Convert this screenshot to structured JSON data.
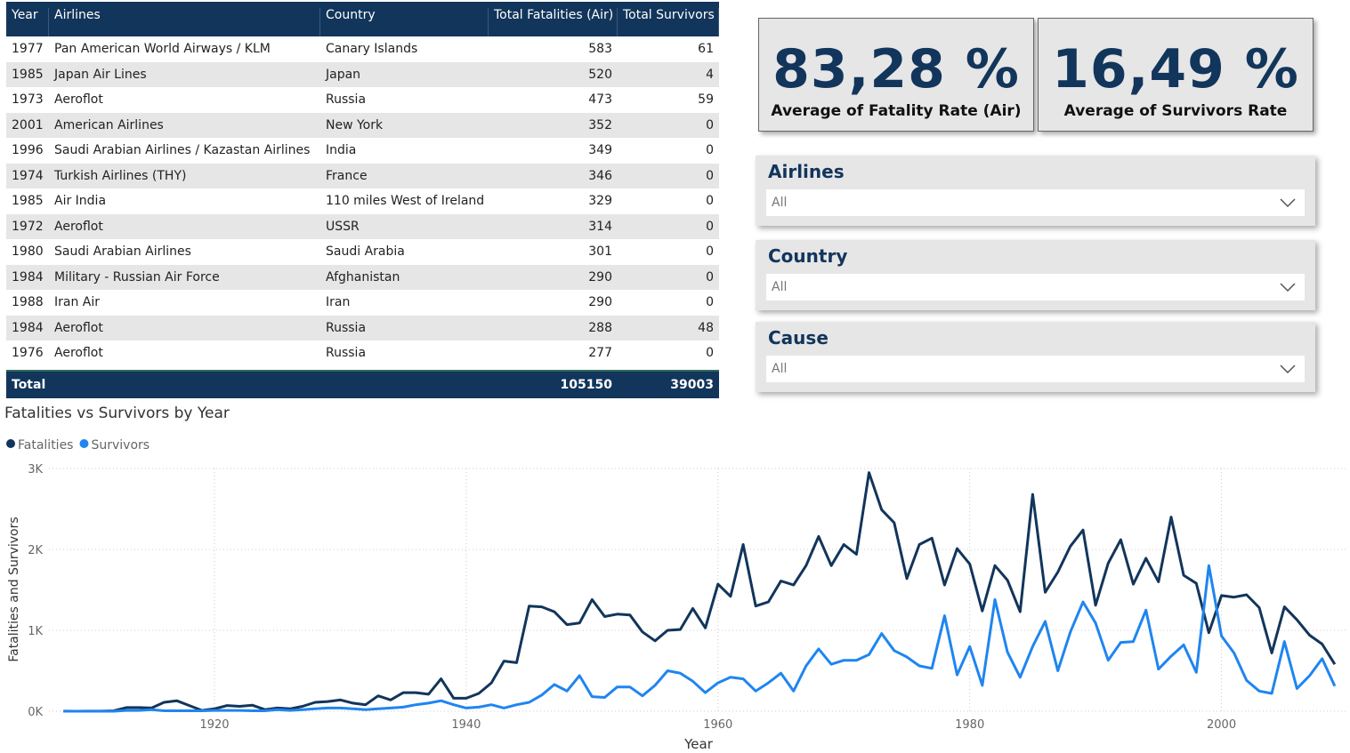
{
  "table": {
    "columns": [
      "Year",
      "Airlines",
      "Country",
      "Total Fatalities (Air)",
      "Total Survivors"
    ],
    "rows": [
      [
        "1977",
        "Pan American World Airways / KLM",
        "Canary Islands",
        "583",
        "61"
      ],
      [
        "1985",
        "Japan Air Lines",
        "Japan",
        "520",
        "4"
      ],
      [
        "1973",
        "Aeroflot",
        "Russia",
        "473",
        "59"
      ],
      [
        "2001",
        "American Airlines",
        "New York",
        "352",
        "0"
      ],
      [
        "1996",
        "Saudi Arabian Airlines / Kazastan Airlines",
        "India",
        "349",
        "0"
      ],
      [
        "1974",
        "Turkish Airlines (THY)",
        "France",
        "346",
        "0"
      ],
      [
        "1985",
        "Air India",
        "110 miles West of Ireland",
        "329",
        "0"
      ],
      [
        "1972",
        "Aeroflot",
        "USSR",
        "314",
        "0"
      ],
      [
        "1980",
        "Saudi Arabian Airlines",
        "Saudi Arabia",
        "301",
        "0"
      ],
      [
        "1984",
        "Military - Russian Air Force",
        "Afghanistan",
        "290",
        "0"
      ],
      [
        "1988",
        "Iran Air",
        "Iran",
        "290",
        "0"
      ],
      [
        "1984",
        "Aeroflot",
        "Russia",
        "288",
        "48"
      ],
      [
        "1976",
        "Aeroflot",
        "Russia",
        "277",
        "0"
      ]
    ],
    "total": {
      "label": "Total",
      "fatalities": "105150",
      "survivors": "39003"
    }
  },
  "kpis": [
    {
      "value": "83,28 %",
      "label": "Average of Fatality Rate (Air)"
    },
    {
      "value": "16,49 %",
      "label": "Average of Survivors Rate"
    }
  ],
  "slicers": [
    {
      "title": "Airlines",
      "selection": "All"
    },
    {
      "title": "Country",
      "selection": "All"
    },
    {
      "title": "Cause",
      "selection": "All"
    }
  ],
  "chart_data": {
    "type": "line",
    "title": "Fatalities vs Survivors by Year",
    "x_label": "Year",
    "y_label": "Fatalities and Survivors",
    "x": [
      1908,
      1909,
      1910,
      1911,
      1912,
      1913,
      1914,
      1915,
      1916,
      1917,
      1918,
      1919,
      1920,
      1921,
      1922,
      1923,
      1924,
      1925,
      1926,
      1927,
      1928,
      1929,
      1930,
      1931,
      1932,
      1933,
      1934,
      1935,
      1936,
      1937,
      1938,
      1939,
      1940,
      1941,
      1942,
      1943,
      1944,
      1945,
      1946,
      1947,
      1948,
      1949,
      1950,
      1951,
      1952,
      1953,
      1954,
      1955,
      1956,
      1957,
      1958,
      1959,
      1960,
      1961,
      1962,
      1963,
      1964,
      1965,
      1966,
      1967,
      1968,
      1969,
      1970,
      1971,
      1972,
      1973,
      1974,
      1975,
      1976,
      1977,
      1978,
      1979,
      1980,
      1981,
      1982,
      1983,
      1984,
      1985,
      1986,
      1987,
      1988,
      1989,
      1990,
      1991,
      1992,
      1993,
      1994,
      1995,
      1996,
      1997,
      1998,
      1999,
      2000,
      2001,
      2002,
      2003,
      2004,
      2005,
      2006,
      2007,
      2008,
      2009
    ],
    "series": [
      {
        "name": "Fatalities",
        "color": "#12355b",
        "values": [
          1,
          0,
          1,
          1,
          5,
          45,
          45,
          40,
          110,
          130,
          70,
          10,
          30,
          70,
          60,
          75,
          20,
          40,
          30,
          60,
          110,
          120,
          140,
          100,
          80,
          190,
          140,
          230,
          230,
          210,
          400,
          160,
          160,
          220,
          350,
          620,
          600,
          1300,
          1290,
          1230,
          1070,
          1090,
          1380,
          1170,
          1200,
          1190,
          980,
          870,
          1000,
          1010,
          1270,
          1030,
          1570,
          1420,
          2060,
          1300,
          1350,
          1610,
          1560,
          1800,
          2160,
          1800,
          2060,
          1940,
          2950,
          2490,
          2330,
          1640,
          2060,
          2140,
          1560,
          2010,
          1820,
          1240,
          1800,
          1620,
          1230,
          2680,
          1470,
          1720,
          2040,
          2240,
          1310,
          1830,
          2120,
          1570,
          1890,
          1600,
          2400,
          1680,
          1580,
          970,
          1430,
          1410,
          1440,
          1280,
          720,
          1290,
          1130,
          940,
          830,
          580
        ]
      },
      {
        "name": "Survivors",
        "color": "#1f85f0",
        "values": [
          0,
          0,
          0,
          0,
          0,
          10,
          10,
          20,
          5,
          5,
          5,
          5,
          10,
          10,
          10,
          5,
          5,
          20,
          10,
          20,
          30,
          40,
          40,
          30,
          20,
          30,
          40,
          50,
          80,
          100,
          130,
          80,
          40,
          50,
          80,
          40,
          80,
          110,
          200,
          330,
          250,
          440,
          180,
          170,
          300,
          300,
          190,
          320,
          500,
          470,
          370,
          230,
          350,
          420,
          400,
          250,
          350,
          470,
          250,
          560,
          770,
          580,
          630,
          630,
          700,
          960,
          750,
          670,
          560,
          530,
          1180,
          450,
          800,
          320,
          1380,
          730,
          420,
          800,
          1110,
          500,
          980,
          1350,
          1090,
          630,
          850,
          860,
          1250,
          520,
          680,
          820,
          480,
          1800,
          930,
          720,
          380,
          250,
          220,
          860,
          280,
          440,
          650,
          310
        ]
      }
    ],
    "xlim": [
      1906,
      2010
    ],
    "xticks": [
      1920,
      1940,
      1960,
      1980,
      2000
    ],
    "ylim": [
      0,
      3000
    ],
    "yticks": [
      {
        "value": 0,
        "label": "0K"
      },
      {
        "value": 1000,
        "label": "1K"
      },
      {
        "value": 2000,
        "label": "2K"
      },
      {
        "value": 3000,
        "label": "3K"
      }
    ],
    "grid": true
  }
}
